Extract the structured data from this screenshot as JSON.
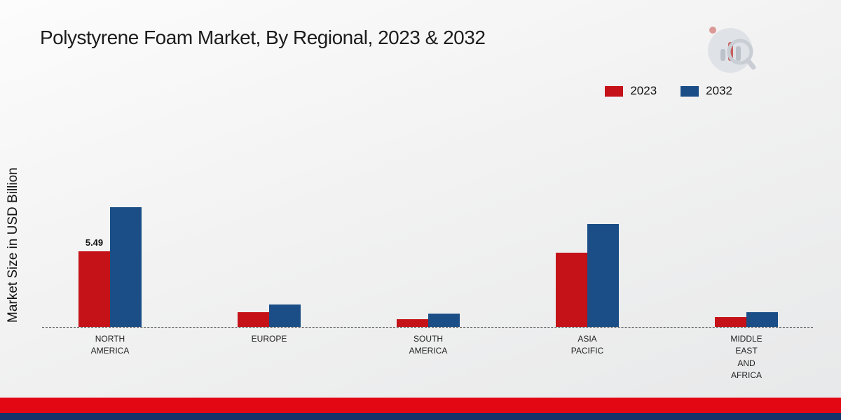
{
  "page": {
    "title": "Polystyrene Foam Market, By Regional, 2023 & 2032"
  },
  "chart_data": {
    "type": "bar",
    "title": "Polystyrene Foam Market, By Regional, 2023 & 2032",
    "xlabel": "",
    "ylabel": "Market Size in USD Billion",
    "categories": [
      "NORTH\nAMERICA",
      "EUROPE",
      "SOUTH\nAMERICA",
      "ASIA\nPACIFIC",
      "MIDDLE\nEAST\nAND\nAFRICA"
    ],
    "series": [
      {
        "name": "2023",
        "color": "#c41218",
        "values": [
          5.49,
          1.05,
          0.55,
          5.4,
          0.7
        ],
        "labels": [
          "5.49",
          "",
          "",
          "",
          ""
        ]
      },
      {
        "name": "2032",
        "color": "#1b4e86",
        "values": [
          8.7,
          1.6,
          0.95,
          7.45,
          1.05
        ],
        "labels": [
          "",
          "",
          "",
          "",
          ""
        ]
      }
    ],
    "ylim": [
      0,
      10
    ],
    "grid": false,
    "legend_position": "top-right",
    "baseline_style": "dashed"
  },
  "footer": {
    "stripe_red": "#e30613",
    "stripe_blue": "#14336b"
  },
  "logo": {
    "name": "market-research-future-logo",
    "circle_color": "#dde1e6",
    "accent_color": "#c9534f"
  }
}
